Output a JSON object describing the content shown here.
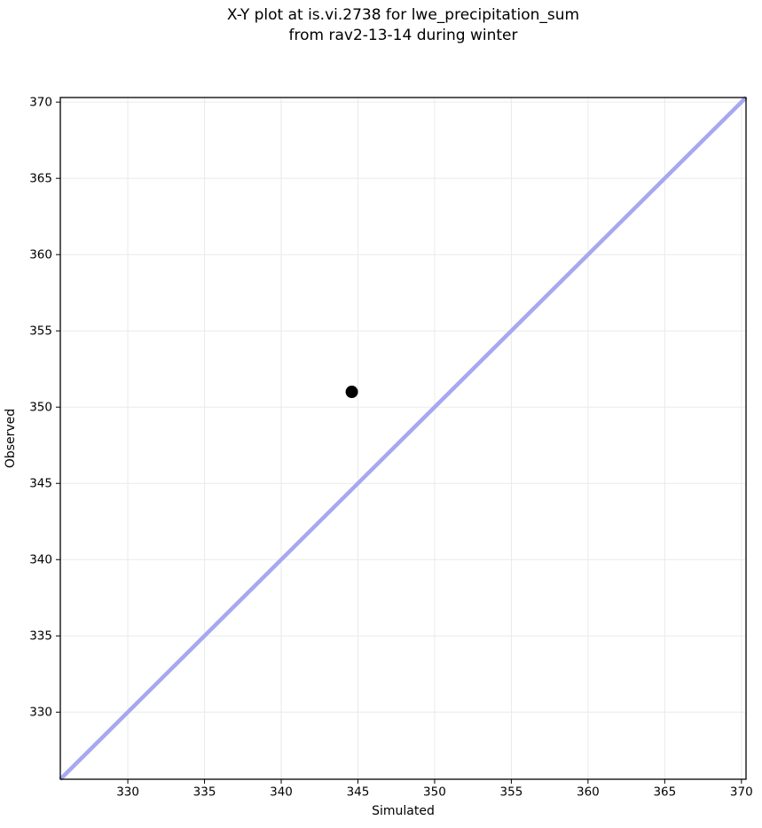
{
  "title": {
    "line1": "X-Y plot at is.vi.2738 for lwe_precipitation_sum",
    "line2": "from rav2-13-14 during winter"
  },
  "chart_data": {
    "type": "scatter",
    "title": "X-Y plot at is.vi.2738 for lwe_precipitation_sum\nfrom rav2-13-14 during winter",
    "title_lines": [
      "X-Y plot at is.vi.2738 for lwe_precipitation_sum",
      "from rav2-13-14 during winter"
    ],
    "xlabel": "Simulated",
    "ylabel": "Observed",
    "xlim": [
      325.6,
      370.3
    ],
    "ylim": [
      325.6,
      370.3
    ],
    "xticks": [
      330,
      335,
      340,
      345,
      350,
      355,
      360,
      365,
      370
    ],
    "yticks": [
      330,
      335,
      340,
      345,
      350,
      355,
      360,
      365,
      370
    ],
    "grid": true,
    "legend": false,
    "series": [
      {
        "name": "observed-vs-simulated-point",
        "type": "scatter",
        "points": [
          {
            "x": 344.6,
            "y": 351.0
          }
        ],
        "color": "#000000",
        "marker": "circle",
        "marker_radius": 7
      }
    ],
    "reference_line": {
      "name": "identity-1-to-1-line",
      "x": [
        325.6,
        370.3
      ],
      "y": [
        325.6,
        370.3
      ],
      "color": "#a6a8f0",
      "width": 4.5
    },
    "colors": {
      "background": "#ffffff",
      "grid": "#eaeaea",
      "spine": "#000000",
      "tick": "#000000",
      "text": "#000000"
    }
  }
}
